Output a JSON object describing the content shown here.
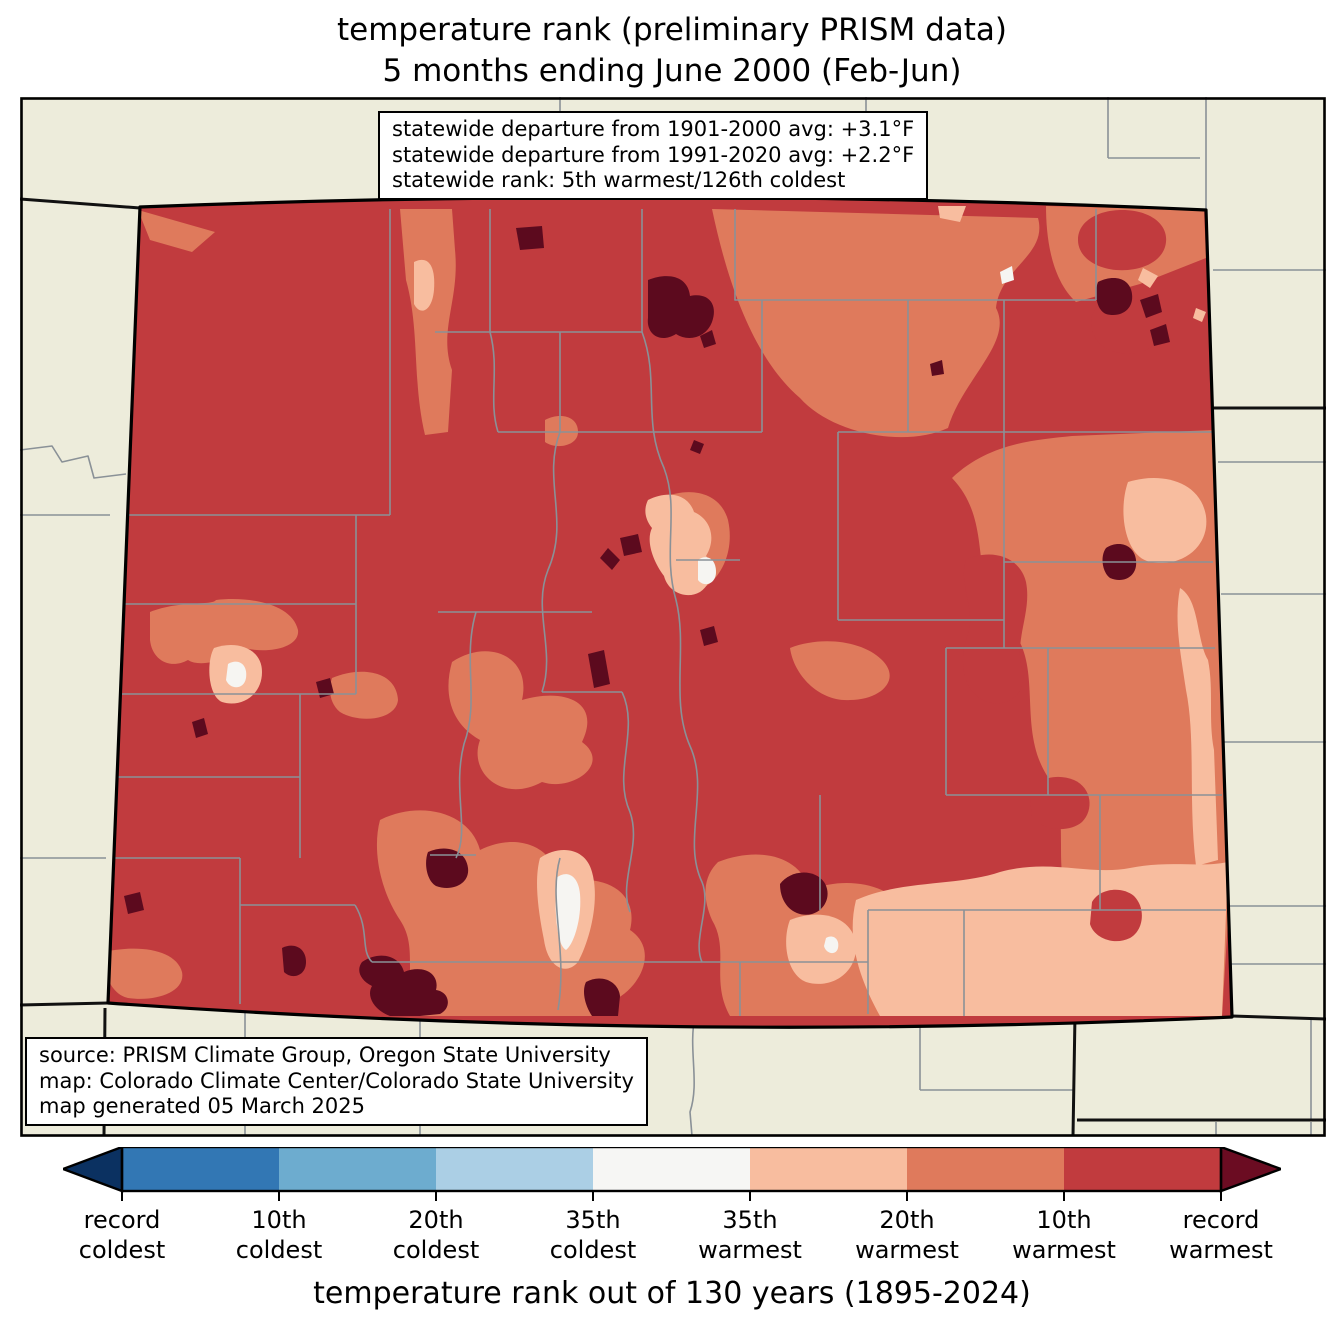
{
  "title": {
    "line1": "temperature rank (preliminary PRISM data)",
    "line2": "5 months ending June 2000 (Feb-Jun)"
  },
  "stats_box": {
    "line1": "statewide departure from 1901-2000 avg: +3.1°F",
    "line2": "statewide departure from 1991-2020 avg: +2.2°F",
    "line3": "statewide rank: 5th warmest/126th coldest"
  },
  "source_box": {
    "line1": "source: PRISM Climate Group, Oregon State University",
    "line2": "map: Colorado Climate Center/Colorado State University",
    "line3": "map generated 05 March 2025"
  },
  "colorbar": {
    "xlabel": "temperature rank out of 130 years (1895-2024)",
    "left_arrow_color": "#0b3161",
    "right_arrow_color": "#6b0c22",
    "segment_colors": [
      "#3277b4",
      "#6daccf",
      "#abcfe5",
      "#f6f6f4",
      "#f8bd9f",
      "#df7a5c",
      "#c13b3e"
    ],
    "tick_labels": [
      {
        "top": "record",
        "bottom": "coldest"
      },
      {
        "top": "10th",
        "bottom": "coldest"
      },
      {
        "top": "20th",
        "bottom": "coldest"
      },
      {
        "top": "35th",
        "bottom": "coldest"
      },
      {
        "top": "35th",
        "bottom": "warmest"
      },
      {
        "top": "20th",
        "bottom": "warmest"
      },
      {
        "top": "10th",
        "bottom": "warmest"
      },
      {
        "top": "record",
        "bottom": "warmest"
      }
    ]
  },
  "map": {
    "region": "Colorado",
    "colors": {
      "outside_land": "#edecdb",
      "warm_10th_base": "#c13b3e",
      "warm_20th": "#df7a5c",
      "warm_35th": "#f8bd9f",
      "near_median": "#f6f5f2",
      "record_warmest": "#5c0a1e",
      "county_line": "#8a9197",
      "state_line": "#111111"
    }
  }
}
